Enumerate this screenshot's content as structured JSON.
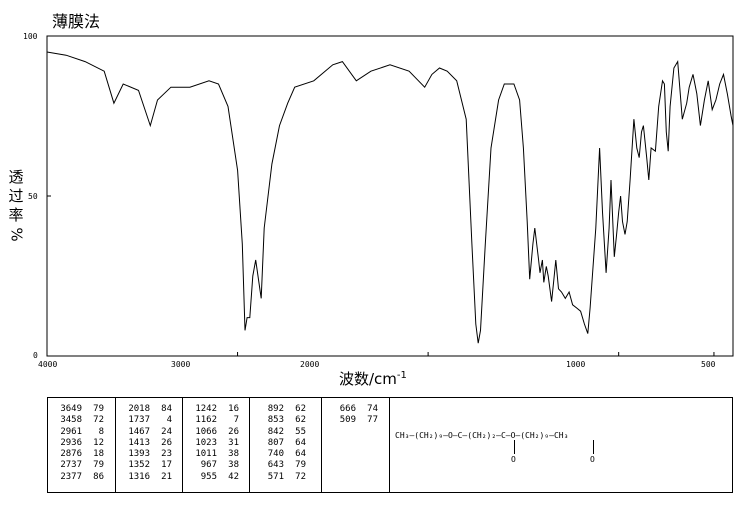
{
  "title": "薄膜法",
  "chart_data": {
    "type": "line",
    "title": "薄膜法",
    "xlabel": "波数/cm",
    "xlabel_sup": "-1",
    "ylabel": [
      "透",
      "过",
      "率",
      "%"
    ],
    "xlim": [
      4000,
      400
    ],
    "ylim": [
      0,
      100
    ],
    "x_ticks": [
      "4000",
      "3000",
      "2000",
      "1000",
      "500"
    ],
    "x_tick_values": [
      4000,
      3000,
      2000,
      1000,
      500
    ],
    "y_ticks": [
      "100",
      "50",
      "0"
    ],
    "y_tick_values": [
      100,
      50,
      0
    ],
    "series": [
      {
        "points": [
          [
            4000,
            95
          ],
          [
            3900,
            94
          ],
          [
            3800,
            92
          ],
          [
            3700,
            89
          ],
          [
            3649,
            79
          ],
          [
            3600,
            85
          ],
          [
            3520,
            83
          ],
          [
            3458,
            72
          ],
          [
            3420,
            80
          ],
          [
            3350,
            84
          ],
          [
            3250,
            84
          ],
          [
            3150,
            86
          ],
          [
            3100,
            85
          ],
          [
            3050,
            78
          ],
          [
            3000,
            58
          ],
          [
            2975,
            35
          ],
          [
            2961,
            8
          ],
          [
            2950,
            12
          ],
          [
            2936,
            12
          ],
          [
            2920,
            25
          ],
          [
            2905,
            30
          ],
          [
            2876,
            18
          ],
          [
            2860,
            40
          ],
          [
            2820,
            60
          ],
          [
            2780,
            72
          ],
          [
            2737,
            79
          ],
          [
            2700,
            84
          ],
          [
            2600,
            86
          ],
          [
            2500,
            91
          ],
          [
            2450,
            92
          ],
          [
            2377,
            86
          ],
          [
            2300,
            89
          ],
          [
            2200,
            91
          ],
          [
            2100,
            89
          ],
          [
            2018,
            84
          ],
          [
            1980,
            88
          ],
          [
            1940,
            90
          ],
          [
            1900,
            89
          ],
          [
            1850,
            86
          ],
          [
            1800,
            74
          ],
          [
            1770,
            35
          ],
          [
            1750,
            10
          ],
          [
            1737,
            4
          ],
          [
            1725,
            8
          ],
          [
            1700,
            35
          ],
          [
            1670,
            65
          ],
          [
            1630,
            80
          ],
          [
            1600,
            85
          ],
          [
            1550,
            85
          ],
          [
            1520,
            80
          ],
          [
            1500,
            65
          ],
          [
            1480,
            42
          ],
          [
            1467,
            24
          ],
          [
            1450,
            35
          ],
          [
            1440,
            40
          ],
          [
            1420,
            30
          ],
          [
            1413,
            26
          ],
          [
            1400,
            30
          ],
          [
            1393,
            23
          ],
          [
            1380,
            28
          ],
          [
            1370,
            25
          ],
          [
            1352,
            17
          ],
          [
            1340,
            24
          ],
          [
            1330,
            30
          ],
          [
            1316,
            21
          ],
          [
            1300,
            20
          ],
          [
            1280,
            18
          ],
          [
            1260,
            20
          ],
          [
            1242,
            16
          ],
          [
            1220,
            15
          ],
          [
            1200,
            14
          ],
          [
            1180,
            10
          ],
          [
            1162,
            7
          ],
          [
            1150,
            15
          ],
          [
            1120,
            40
          ],
          [
            1100,
            65
          ],
          [
            1085,
            45
          ],
          [
            1066,
            26
          ],
          [
            1050,
            40
          ],
          [
            1040,
            55
          ],
          [
            1023,
            31
          ],
          [
            1011,
            38
          ],
          [
            1000,
            45
          ],
          [
            990,
            50
          ],
          [
            980,
            42
          ],
          [
            967,
            38
          ],
          [
            955,
            42
          ],
          [
            940,
            55
          ],
          [
            920,
            74
          ],
          [
            905,
            65
          ],
          [
            892,
            62
          ],
          [
            880,
            70
          ],
          [
            870,
            72
          ],
          [
            853,
            62
          ],
          [
            842,
            55
          ],
          [
            830,
            65
          ],
          [
            807,
            64
          ],
          [
            790,
            78
          ],
          [
            770,
            86
          ],
          [
            760,
            85
          ],
          [
            750,
            70
          ],
          [
            740,
            64
          ],
          [
            730,
            78
          ],
          [
            710,
            90
          ],
          [
            690,
            92
          ],
          [
            666,
            74
          ],
          [
            643,
            79
          ],
          [
            630,
            84
          ],
          [
            610,
            88
          ],
          [
            590,
            82
          ],
          [
            571,
            72
          ],
          [
            550,
            80
          ],
          [
            530,
            86
          ],
          [
            509,
            77
          ],
          [
            490,
            80
          ],
          [
            470,
            85
          ],
          [
            450,
            88
          ],
          [
            430,
            82
          ],
          [
            410,
            75
          ],
          [
            400,
            72
          ]
        ]
      }
    ]
  },
  "peak_table": {
    "columns": [
      [
        [
          "3649",
          "79"
        ],
        [
          "3458",
          "72"
        ],
        [
          "2961",
          "8"
        ],
        [
          "2936",
          "12"
        ],
        [
          "2876",
          "18"
        ],
        [
          "2737",
          "79"
        ],
        [
          "2377",
          "86"
        ]
      ],
      [
        [
          "2018",
          "84"
        ],
        [
          "1737",
          "4"
        ],
        [
          "1467",
          "24"
        ],
        [
          "1413",
          "26"
        ],
        [
          "1393",
          "23"
        ],
        [
          "1352",
          "17"
        ],
        [
          "1316",
          "21"
        ]
      ],
      [
        [
          "1242",
          "16"
        ],
        [
          "1162",
          "7"
        ],
        [
          "1066",
          "26"
        ],
        [
          "1023",
          "31"
        ],
        [
          "1011",
          "38"
        ],
        [
          "967",
          "38"
        ],
        [
          "955",
          "42"
        ]
      ],
      [
        [
          "892",
          "62"
        ],
        [
          "853",
          "62"
        ],
        [
          "842",
          "55"
        ],
        [
          "807",
          "64"
        ],
        [
          "740",
          "64"
        ],
        [
          "643",
          "79"
        ],
        [
          "571",
          "72"
        ]
      ],
      [
        [
          "666",
          "74"
        ],
        [
          "509",
          "77"
        ]
      ]
    ]
  },
  "structure": {
    "formula_line": "CH₃—(CH₂)₉—O—C—(CH₂)₂—C—O—(CH₂)₉—CH₃",
    "oxygen_label": "O"
  }
}
